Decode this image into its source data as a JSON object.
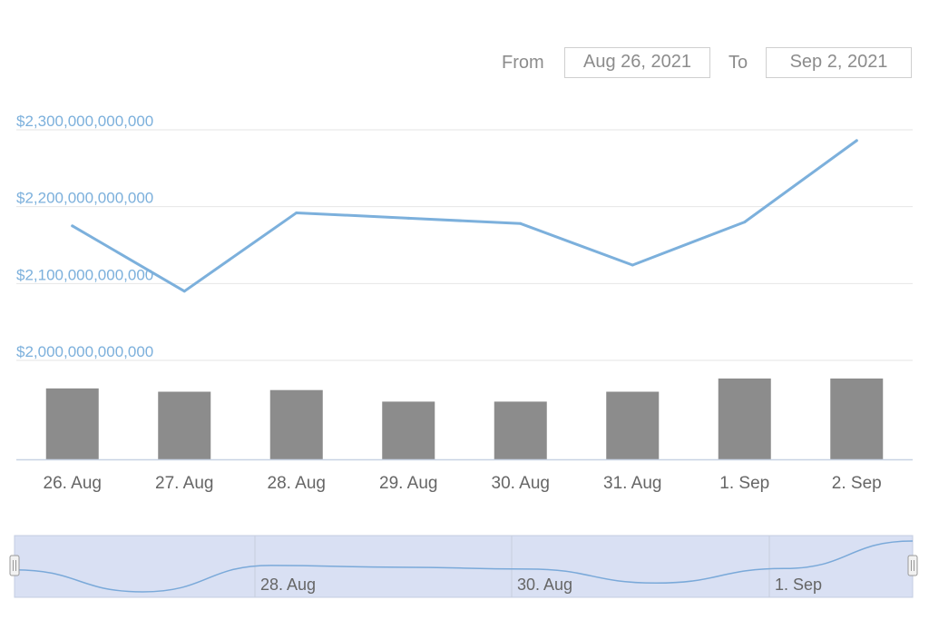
{
  "range_selector": {
    "from_label": "From",
    "from_value": "Aug 26, 2021",
    "to_label": "To",
    "to_value": "Sep 2, 2021"
  },
  "colors": {
    "line": "#7cb0dc",
    "bar": "#8c8c8c",
    "y_label": "#7cb0dc",
    "grid": "#e6e6e6",
    "navigator_fill": "#d9e0f3",
    "navigator_line": "#7aa9d9",
    "navigator_border": "#c4cde0"
  },
  "chart_data": {
    "type": "line",
    "categories": [
      "26. Aug",
      "27. Aug",
      "28. Aug",
      "29. Aug",
      "30. Aug",
      "31. Aug",
      "1. Sep",
      "2. Sep"
    ],
    "series": [
      {
        "type": "line",
        "values": [
          2175000000000,
          2090000000000,
          2192000000000,
          2185000000000,
          2178000000000,
          2124000000000,
          2180000000000,
          2286000000000
        ]
      },
      {
        "type": "bar",
        "values": [
          86,
          82,
          84,
          70,
          70,
          82,
          98,
          98
        ]
      }
    ],
    "yaxis": {
      "ticks": [
        2300000000000,
        2200000000000,
        2100000000000,
        2000000000000
      ],
      "tick_labels": [
        "$2,300,000,000,000",
        "$2,200,000,000,000",
        "$2,100,000,000,000",
        "$2,000,000,000,000"
      ],
      "range": [
        2000000000000,
        2300000000000
      ]
    },
    "volume_range": [
      0,
      120
    ],
    "xlabel": "",
    "ylabel": "",
    "grid": true,
    "navigator": {
      "tick_labels": [
        "28. Aug",
        "30. Aug",
        "1. Sep"
      ]
    }
  }
}
